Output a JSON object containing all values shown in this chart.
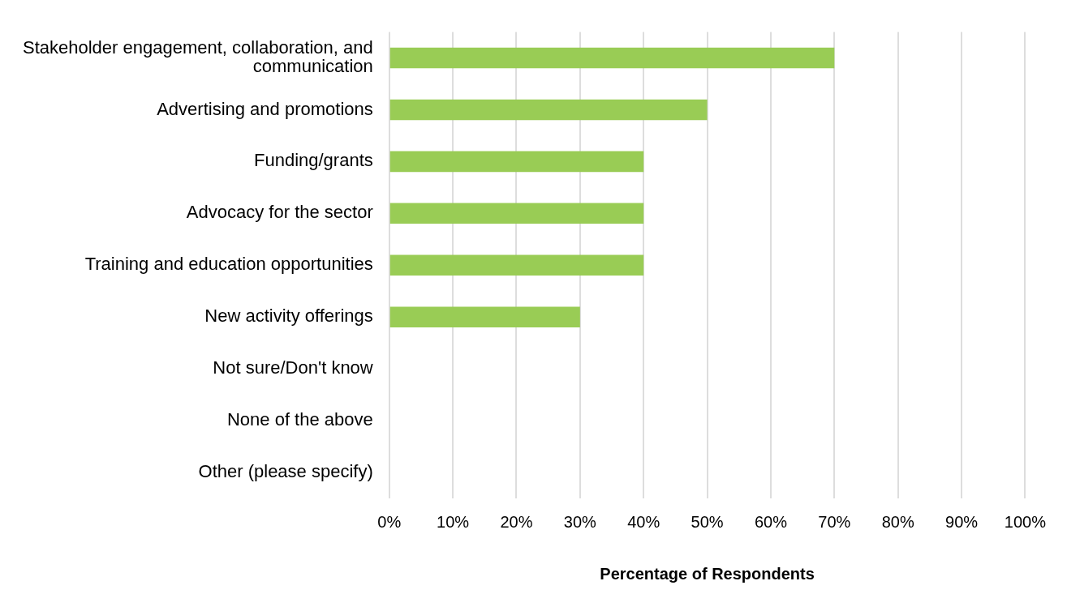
{
  "chart_data": {
    "type": "bar",
    "orientation": "horizontal",
    "xlabel": "Percentage of Respondents",
    "categories": [
      "Stakeholder engagement, collaboration, and communication",
      "Advertising and promotions",
      "Funding/grants",
      "Advocacy for the sector",
      "Training and education opportunities",
      "New activity offerings",
      "Not sure/Don't know",
      "None of the above",
      "Other (please specify)"
    ],
    "values": [
      70,
      50,
      40,
      40,
      40,
      30,
      0,
      0,
      0
    ],
    "color": "#99cc55",
    "xlim": [
      0,
      100
    ],
    "xticks": [
      {
        "value": 0,
        "label": "0%"
      },
      {
        "value": 10,
        "label": "10%"
      },
      {
        "value": 20,
        "label": "20%"
      },
      {
        "value": 30,
        "label": "30%"
      },
      {
        "value": 40,
        "label": "40%"
      },
      {
        "value": 50,
        "label": "50%"
      },
      {
        "value": 60,
        "label": "60%"
      },
      {
        "value": 70,
        "label": "70%"
      },
      {
        "value": 80,
        "label": "80%"
      },
      {
        "value": 90,
        "label": "90%"
      },
      {
        "value": 100,
        "label": "100%"
      }
    ],
    "grid": "x",
    "legend": false
  }
}
